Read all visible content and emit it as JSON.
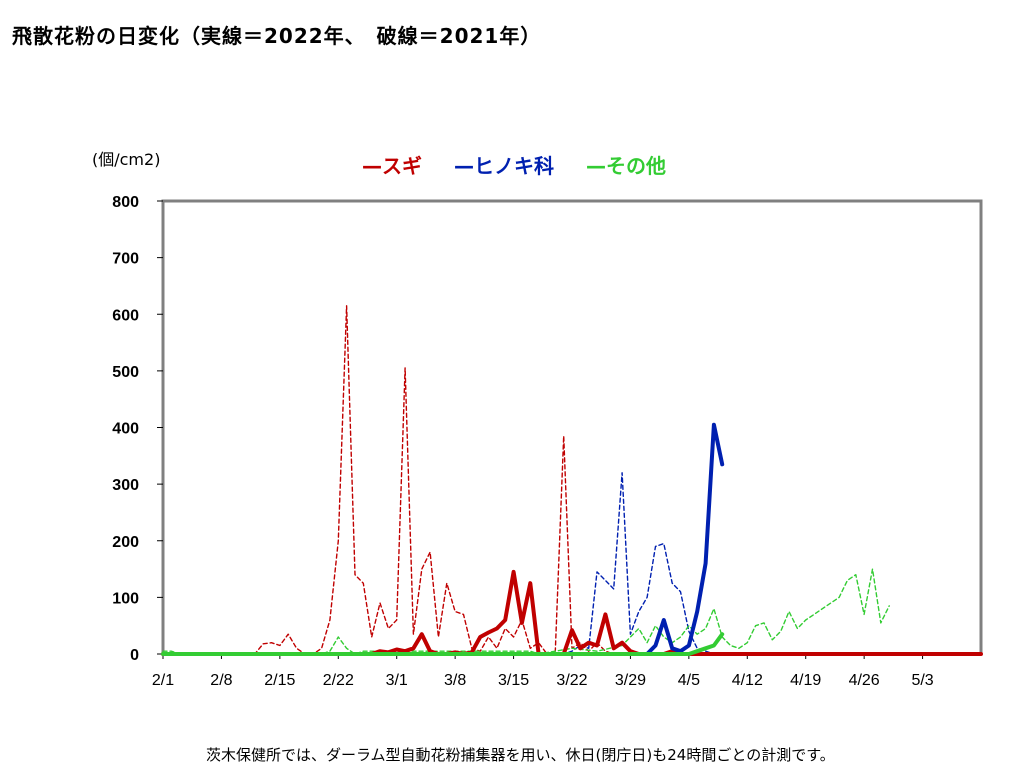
{
  "title": "飛散花粉の日変化（実線＝2022年、　破線＝2021年）",
  "footnote": "茨木保健所では、ダーラム型自動花粉捕集器を用い、休日(閉庁日)も24時間ごとの計測です。",
  "chart_data": {
    "type": "line",
    "unit_label": "(個/cm2)",
    "ylim": [
      0,
      800
    ],
    "yticks": [
      0,
      100,
      200,
      300,
      400,
      500,
      600,
      700,
      800
    ],
    "x_range_days": [
      0,
      98
    ],
    "xtick_labels": [
      "2/1",
      "2/8",
      "2/15",
      "2/22",
      "3/1",
      "3/8",
      "3/15",
      "3/22",
      "3/29",
      "4/5",
      "4/12",
      "4/19",
      "4/26",
      "5/3"
    ],
    "xtick_days": [
      0,
      7,
      14,
      21,
      28,
      35,
      42,
      49,
      56,
      63,
      70,
      77,
      84,
      91
    ],
    "legend": [
      {
        "label": "—スギ",
        "color": "#c00000"
      },
      {
        "label": "—ヒノキ科",
        "color": "#0020b0"
      },
      {
        "label": "—その他",
        "color": "#33cc33"
      }
    ],
    "series": [
      {
        "name": "スギ",
        "year": "2022",
        "style": "solid",
        "color": "#c00000",
        "points": [
          [
            0,
            0
          ],
          [
            25,
            0
          ],
          [
            26,
            5
          ],
          [
            27,
            3
          ],
          [
            28,
            8
          ],
          [
            29,
            5
          ],
          [
            30,
            10
          ],
          [
            31,
            35
          ],
          [
            32,
            5
          ],
          [
            33,
            0
          ],
          [
            34,
            0
          ],
          [
            35,
            3
          ],
          [
            36,
            0
          ],
          [
            37,
            3
          ],
          [
            38,
            30
          ],
          [
            39,
            38
          ],
          [
            40,
            45
          ],
          [
            41,
            60
          ],
          [
            42,
            145
          ],
          [
            43,
            55
          ],
          [
            44,
            125
          ],
          [
            45,
            0
          ],
          [
            46,
            0
          ],
          [
            47,
            0
          ],
          [
            48,
            0
          ],
          [
            49,
            42
          ],
          [
            50,
            10
          ],
          [
            51,
            20
          ],
          [
            52,
            15
          ],
          [
            53,
            70
          ],
          [
            54,
            10
          ],
          [
            55,
            20
          ],
          [
            56,
            5
          ],
          [
            57,
            0
          ],
          [
            60,
            0
          ],
          [
            61,
            5
          ],
          [
            62,
            0
          ],
          [
            98,
            0
          ]
        ]
      },
      {
        "name": "ヒノキ科",
        "year": "2022",
        "style": "solid",
        "color": "#0020b0",
        "points": [
          [
            55,
            0
          ],
          [
            58,
            0
          ],
          [
            59,
            15
          ],
          [
            60,
            60
          ],
          [
            61,
            10
          ],
          [
            62,
            5
          ],
          [
            63,
            15
          ],
          [
            64,
            75
          ],
          [
            65,
            160
          ],
          [
            66,
            405
          ],
          [
            67,
            335
          ]
        ]
      },
      {
        "name": "その他",
        "year": "2022",
        "style": "solid",
        "color": "#33cc33",
        "points": [
          [
            0,
            0
          ],
          [
            63,
            0
          ],
          [
            64,
            5
          ],
          [
            65,
            10
          ],
          [
            66,
            15
          ],
          [
            67,
            35
          ]
        ]
      },
      {
        "name": "スギ",
        "year": "2021",
        "style": "dashed",
        "color": "#c00000",
        "points": [
          [
            0,
            0
          ],
          [
            11,
            0
          ],
          [
            12,
            18
          ],
          [
            13,
            20
          ],
          [
            14,
            15
          ],
          [
            15,
            35
          ],
          [
            16,
            10
          ],
          [
            17,
            0
          ],
          [
            18,
            0
          ],
          [
            19,
            10
          ],
          [
            20,
            60
          ],
          [
            21,
            200
          ],
          [
            22,
            615
          ],
          [
            23,
            140
          ],
          [
            24,
            125
          ],
          [
            25,
            30
          ],
          [
            26,
            90
          ],
          [
            27,
            45
          ],
          [
            28,
            60
          ],
          [
            29,
            505
          ],
          [
            30,
            35
          ],
          [
            31,
            150
          ],
          [
            32,
            180
          ],
          [
            33,
            30
          ],
          [
            34,
            125
          ],
          [
            35,
            75
          ],
          [
            36,
            70
          ],
          [
            37,
            10
          ],
          [
            38,
            5
          ],
          [
            39,
            30
          ],
          [
            40,
            10
          ],
          [
            41,
            45
          ],
          [
            42,
            30
          ],
          [
            43,
            60
          ],
          [
            44,
            10
          ],
          [
            45,
            20
          ],
          [
            46,
            0
          ],
          [
            47,
            5
          ],
          [
            48,
            385
          ],
          [
            49,
            10
          ],
          [
            50,
            20
          ],
          [
            51,
            5
          ],
          [
            52,
            20
          ],
          [
            53,
            5
          ],
          [
            54,
            0
          ],
          [
            98,
            0
          ]
        ]
      },
      {
        "name": "ヒノキ科",
        "year": "2021",
        "style": "dashed",
        "color": "#0020b0",
        "points": [
          [
            0,
            0
          ],
          [
            48,
            0
          ],
          [
            49,
            5
          ],
          [
            50,
            15
          ],
          [
            51,
            10
          ],
          [
            52,
            145
          ],
          [
            53,
            130
          ],
          [
            54,
            115
          ],
          [
            55,
            320
          ],
          [
            56,
            35
          ],
          [
            57,
            75
          ],
          [
            58,
            100
          ],
          [
            59,
            190
          ],
          [
            60,
            195
          ],
          [
            61,
            125
          ],
          [
            62,
            110
          ],
          [
            63,
            40
          ],
          [
            64,
            10
          ],
          [
            65,
            5
          ],
          [
            66,
            0
          ],
          [
            98,
            0
          ]
        ]
      },
      {
        "name": "その他",
        "year": "2021",
        "style": "dashed",
        "color": "#33cc33",
        "points": [
          [
            0,
            5
          ],
          [
            1,
            5
          ],
          [
            2,
            0
          ],
          [
            19,
            0
          ],
          [
            20,
            5
          ],
          [
            21,
            30
          ],
          [
            22,
            10
          ],
          [
            23,
            0
          ],
          [
            24,
            5
          ],
          [
            44,
            5
          ],
          [
            45,
            0
          ],
          [
            49,
            10
          ],
          [
            52,
            5
          ],
          [
            55,
            15
          ],
          [
            57,
            45
          ],
          [
            58,
            20
          ],
          [
            59,
            50
          ],
          [
            60,
            30
          ],
          [
            61,
            20
          ],
          [
            62,
            30
          ],
          [
            63,
            50
          ],
          [
            64,
            35
          ],
          [
            65,
            45
          ],
          [
            66,
            80
          ],
          [
            67,
            30
          ],
          [
            68,
            15
          ],
          [
            69,
            10
          ],
          [
            70,
            20
          ],
          [
            71,
            50
          ],
          [
            72,
            55
          ],
          [
            73,
            25
          ],
          [
            74,
            40
          ],
          [
            75,
            75
          ],
          [
            76,
            45
          ],
          [
            77,
            60
          ],
          [
            78,
            70
          ],
          [
            79,
            80
          ],
          [
            80,
            90
          ],
          [
            81,
            100
          ],
          [
            82,
            130
          ],
          [
            83,
            140
          ],
          [
            84,
            70
          ],
          [
            85,
            150
          ],
          [
            86,
            55
          ],
          [
            87,
            85
          ]
        ]
      }
    ]
  }
}
